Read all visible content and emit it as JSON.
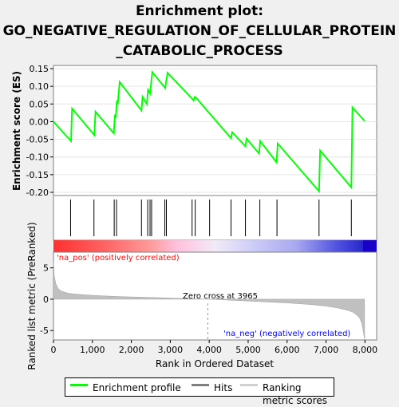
{
  "chart_data": {
    "type": "line",
    "title": [
      "Enrichment plot:",
      "GO_NEGATIVE_REGULATION_OF_CELLULAR_PROTEIN",
      "_CATABOLIC_PROCESS"
    ],
    "colors": {
      "profile": "#00ff00",
      "hits": "#000000",
      "metric": "#c0c0c0",
      "pos_label": "#ff0000",
      "neg_label": "#0000ff"
    },
    "enrichment": {
      "ylabel": "Enrichment score (ES)",
      "ylim": [
        -0.2,
        0.15
      ],
      "yticks": [
        0.15,
        0.1,
        0.05,
        0.0,
        -0.05,
        -0.1,
        -0.15,
        -0.2
      ],
      "ytick_labels": [
        "0.15",
        "0.10",
        "0.05",
        "0.00",
        "-0.05",
        "-0.10",
        "-0.15",
        "-0.20"
      ],
      "x": [
        0,
        450,
        480,
        1050,
        1080,
        1550,
        1580,
        1600,
        1630,
        1650,
        1700,
        2260,
        2290,
        2400,
        2430,
        2480,
        2510,
        2540,
        2870,
        2900,
        2930,
        3560,
        3600,
        3630,
        3660,
        4560,
        4590,
        4930,
        4960,
        5280,
        5310,
        5730,
        5760,
        6820,
        6850,
        7650,
        7680,
        7990
      ],
      "y": [
        0.0,
        -0.055,
        0.037,
        -0.038,
        0.028,
        -0.033,
        0.02,
        0.01,
        0.06,
        0.048,
        0.112,
        0.032,
        0.07,
        0.05,
        0.09,
        0.08,
        0.11,
        0.14,
        0.095,
        0.118,
        0.138,
        0.065,
        0.06,
        0.07,
        0.068,
        -0.047,
        -0.03,
        -0.07,
        -0.048,
        -0.09,
        -0.055,
        -0.115,
        -0.062,
        -0.197,
        -0.082,
        -0.186,
        0.04,
        0.002
      ]
    },
    "hits": [
      440,
      1040,
      1560,
      1620,
      2260,
      2420,
      2480,
      2520,
      2860,
      2900,
      3560,
      3640,
      4010,
      4560,
      4930,
      5300,
      5740,
      6820,
      7650
    ],
    "metric": {
      "ylabel": "Ranked list metric (PreRanked)",
      "xlabel": "Rank in Ordered Dataset",
      "ylim": [
        -6.5,
        7.5
      ],
      "yticks": [
        5,
        0,
        -5
      ],
      "ytick_labels": [
        "5",
        "0",
        "-5"
      ],
      "xticks": [
        0,
        1000,
        2000,
        3000,
        4000,
        5000,
        6000,
        7000,
        8000
      ],
      "xtick_labels": [
        "0",
        "1,000",
        "2,000",
        "3,000",
        "4,000",
        "5,000",
        "6,000",
        "7,000",
        "8,000"
      ],
      "xlim": [
        0,
        8300
      ],
      "curve_x": [
        0,
        20,
        60,
        120,
        200,
        350,
        500,
        800,
        1200,
        1800,
        2500,
        3200,
        3965,
        4500,
        5200,
        6000,
        6600,
        7000,
        7300,
        7550,
        7700,
        7800,
        7870,
        7920,
        7960,
        7990
      ],
      "curve_y": [
        6.0,
        3.8,
        2.5,
        1.7,
        1.3,
        1.0,
        0.85,
        0.7,
        0.55,
        0.4,
        0.28,
        0.15,
        0.0,
        -0.15,
        -0.35,
        -0.6,
        -0.85,
        -1.1,
        -1.4,
        -1.75,
        -2.1,
        -2.6,
        -3.1,
        -3.9,
        -5.3,
        -6.4
      ],
      "zero_cross_label": "Zero cross at 3965",
      "zero_cross": 3965,
      "pos_label": "'na_pos' (positively correlated)",
      "neg_label": "'na_neg' (negatively correlated)"
    },
    "legend": [
      "Enrichment profile",
      "Hits",
      "Ranking metric scores"
    ]
  }
}
